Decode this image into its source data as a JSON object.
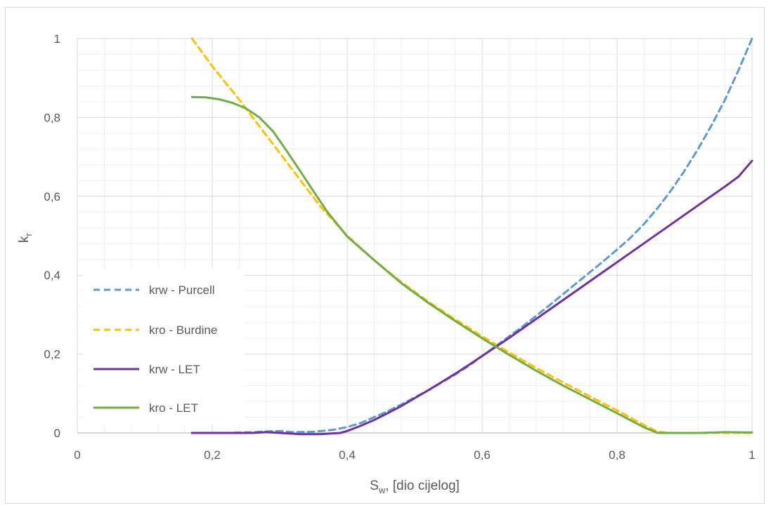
{
  "chart_data": {
    "type": "line",
    "xlabel": "S",
    "xlabel_sub": "w",
    "xlabel_rest": ", [dio cijelog]",
    "ylabel": "k",
    "ylabel_sub": "r",
    "xlim": [
      0,
      1
    ],
    "ylim": [
      0,
      1
    ],
    "x_ticks": [
      0,
      0.2,
      0.4,
      0.6,
      0.8,
      1
    ],
    "x_tick_labels": [
      "0",
      "0,2",
      "0,4",
      "0,6",
      "0,8",
      "1"
    ],
    "y_ticks": [
      0,
      0.2,
      0.4,
      0.6,
      0.8,
      1
    ],
    "y_tick_labels": [
      "0",
      "0,2",
      "0,4",
      "0,6",
      "0,8",
      "1"
    ],
    "x_minor_step": 0.04,
    "y_minor_step": 0.04,
    "grid": true,
    "legend_position": "left-bottom",
    "series": [
      {
        "name": "krw - Purcell",
        "color": "#5b9bd5",
        "dash": true,
        "x": [
          0.17,
          0.22,
          0.26,
          0.28,
          0.3,
          0.32,
          0.35,
          0.38,
          0.4,
          0.42,
          0.44,
          0.46,
          0.48,
          0.5,
          0.52,
          0.54,
          0.56,
          0.58,
          0.6,
          0.62,
          0.64,
          0.66,
          0.68,
          0.7,
          0.72,
          0.74,
          0.76,
          0.78,
          0.8,
          0.82,
          0.84,
          0.86,
          0.88,
          0.9,
          0.92,
          0.94,
          0.96,
          0.98,
          1.0
        ],
        "y": [
          0.0,
          0.0,
          0.002,
          0.004,
          0.005,
          0.002,
          0.003,
          0.008,
          0.015,
          0.025,
          0.04,
          0.055,
          0.072,
          0.09,
          0.108,
          0.128,
          0.148,
          0.17,
          0.195,
          0.22,
          0.245,
          0.27,
          0.297,
          0.324,
          0.352,
          0.38,
          0.408,
          0.436,
          0.465,
          0.495,
          0.53,
          0.57,
          0.615,
          0.665,
          0.72,
          0.78,
          0.845,
          0.92,
          1.0
        ]
      },
      {
        "name": "kro - Burdine",
        "color": "#ffc000",
        "dash": true,
        "x": [
          0.17,
          0.2,
          0.24,
          0.28,
          0.32,
          0.36,
          0.4,
          0.44,
          0.48,
          0.52,
          0.56,
          0.6,
          0.64,
          0.68,
          0.72,
          0.76,
          0.8,
          0.84,
          0.86,
          0.88,
          0.9,
          0.94,
          1.0
        ],
        "y": [
          1.0,
          0.93,
          0.845,
          0.755,
          0.665,
          0.575,
          0.5,
          0.438,
          0.383,
          0.333,
          0.288,
          0.245,
          0.204,
          0.165,
          0.128,
          0.092,
          0.057,
          0.02,
          0.003,
          0.0,
          0.0,
          0.0,
          0.0
        ]
      },
      {
        "name": "krw - LET",
        "color": "#7030a0",
        "dash": false,
        "x": [
          0.17,
          0.22,
          0.26,
          0.28,
          0.3,
          0.33,
          0.36,
          0.39,
          0.4,
          0.42,
          0.44,
          0.46,
          0.48,
          0.5,
          0.52,
          0.54,
          0.56,
          0.58,
          0.6,
          0.62,
          0.64,
          0.66,
          0.68,
          0.7,
          0.72,
          0.74,
          0.76,
          0.78,
          0.8,
          0.82,
          0.84,
          0.86,
          0.88,
          0.9,
          0.92,
          0.94,
          0.96,
          0.98,
          1.0
        ],
        "y": [
          0.0,
          0.0,
          0.0,
          0.002,
          0.0,
          -0.003,
          -0.003,
          0.0,
          0.005,
          0.018,
          0.033,
          0.05,
          0.068,
          0.088,
          0.108,
          0.129,
          0.15,
          0.172,
          0.195,
          0.218,
          0.241,
          0.265,
          0.289,
          0.313,
          0.337,
          0.361,
          0.385,
          0.409,
          0.433,
          0.457,
          0.481,
          0.505,
          0.529,
          0.553,
          0.577,
          0.601,
          0.625,
          0.65,
          0.69
        ]
      },
      {
        "name": "kro - LET",
        "color": "#70ad47",
        "dash": false,
        "x": [
          0.17,
          0.19,
          0.21,
          0.23,
          0.25,
          0.27,
          0.29,
          0.31,
          0.33,
          0.35,
          0.37,
          0.4,
          0.44,
          0.48,
          0.52,
          0.56,
          0.6,
          0.64,
          0.68,
          0.72,
          0.76,
          0.8,
          0.84,
          0.86,
          0.88,
          0.92,
          0.96,
          1.0
        ],
        "y": [
          0.852,
          0.851,
          0.846,
          0.837,
          0.823,
          0.8,
          0.765,
          0.716,
          0.665,
          0.613,
          0.562,
          0.498,
          0.438,
          0.38,
          0.33,
          0.284,
          0.24,
          0.198,
          0.158,
          0.12,
          0.085,
          0.05,
          0.014,
          0.0,
          0.0,
          0.0,
          0.002,
          0.001
        ]
      }
    ]
  }
}
